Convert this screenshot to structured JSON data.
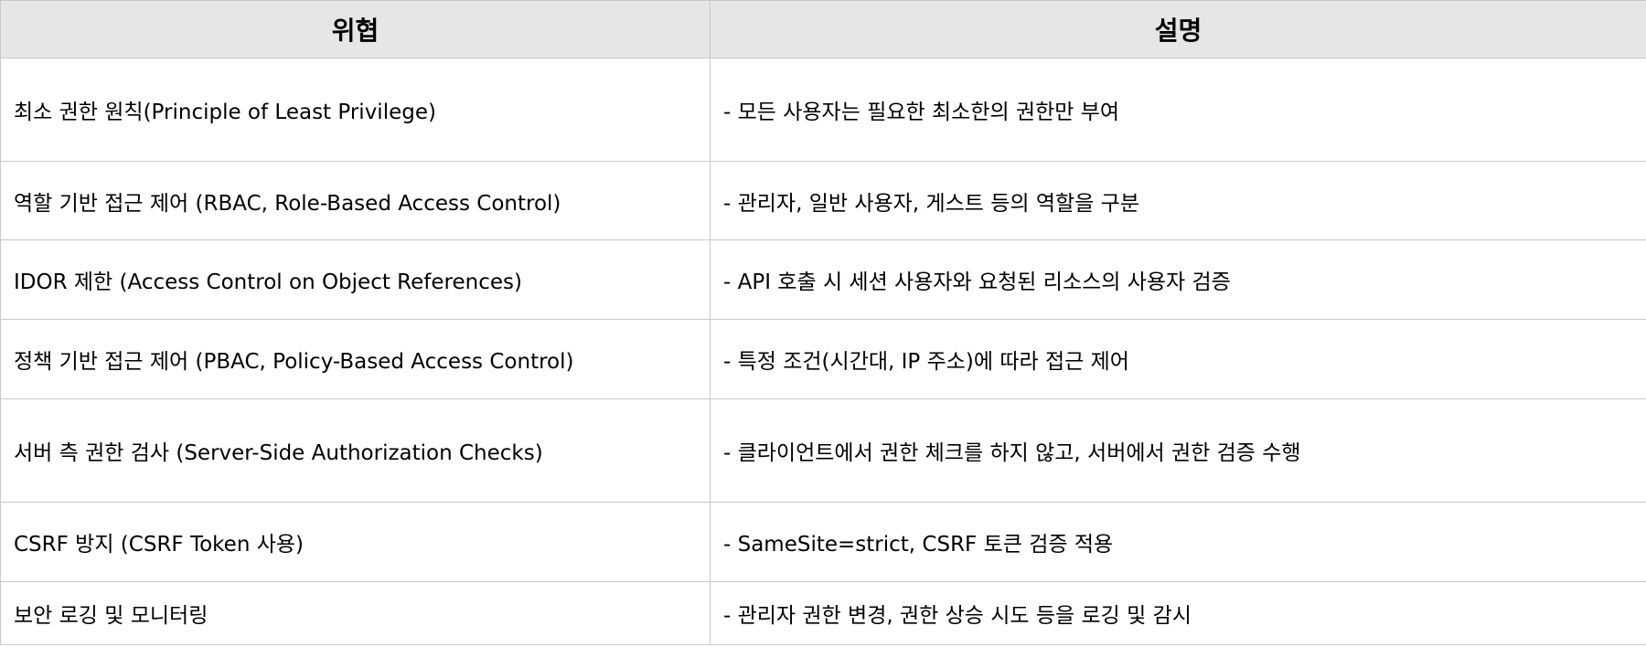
{
  "table": {
    "headers": [
      "위협",
      "설명"
    ],
    "rows": [
      {
        "threat": "최소 권한 원칙(Principle of Least Privilege)",
        "description": "- 모든 사용자는 필요한 최소한의 권한만 부여"
      },
      {
        "threat": "역할 기반 접근 제어 (RBAC, Role-Based Access Control)",
        "description": "- 관리자, 일반 사용자, 게스트 등의 역할을 구분"
      },
      {
        "threat": "IDOR 제한 (Access Control on Object References)",
        "description": "- API 호출 시 세션 사용자와 요청된 리소스의 사용자 검증"
      },
      {
        "threat": "정책 기반 접근 제어 (PBAC, Policy-Based Access Control)",
        "description": "- 특정 조건(시간대, IP 주소)에 따라 접근 제어"
      },
      {
        "threat": "서버 측 권한 검사 (Server-Side Authorization Checks)",
        "description": "- 클라이언트에서 권한 체크를 하지 않고, 서버에서 권한 검증 수행"
      },
      {
        "threat": "CSRF 방지 (CSRF Token 사용)",
        "description": "- SameSite=strict, CSRF 토큰 검증 적용"
      },
      {
        "threat": "보안 로깅 및 모니터링",
        "description": "- 관리자 권한 변경, 권한 상승 시도 등을 로깅 및 감시"
      }
    ]
  }
}
